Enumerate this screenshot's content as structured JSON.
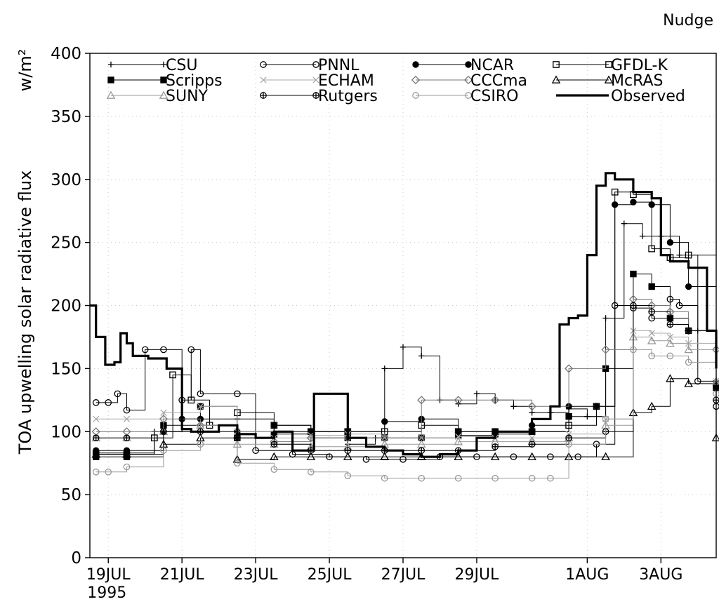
{
  "chart_data": {
    "type": "line",
    "title": "Nudge",
    "ylabel": "TOA upwelling solar radiative flux",
    "yunit": "w/m²",
    "ylim": [
      0,
      400
    ],
    "yticks": [
      0,
      50,
      100,
      150,
      200,
      250,
      300,
      350,
      400
    ],
    "xlim": [
      "1995-07-18T12:00",
      "1995-08-04T12:00"
    ],
    "xticks": [
      {
        "label": "19JUL",
        "sub": "1995",
        "date": "1995-07-19"
      },
      {
        "label": "21JUL",
        "sub": "",
        "date": "1995-07-21"
      },
      {
        "label": "23JUL",
        "sub": "",
        "date": "1995-07-23"
      },
      {
        "label": "25JUL",
        "sub": "",
        "date": "1995-07-25"
      },
      {
        "label": "27JUL",
        "sub": "",
        "date": "1995-07-27"
      },
      {
        "label": "29JUL",
        "sub": "",
        "date": "1995-07-29"
      },
      {
        "label": "1AUG",
        "sub": "",
        "date": "1995-08-01"
      },
      {
        "label": "3AUG",
        "sub": "",
        "date": "1995-08-03"
      }
    ],
    "grid": true,
    "legend_position": "top",
    "series": [
      {
        "name": "CSU",
        "color": "#000000",
        "marker": "plus",
        "width": 1,
        "x": [
          "1995-07-18T16:00",
          "1995-07-19T12:00",
          "1995-07-20T06:00",
          "1995-07-21T00:00",
          "1995-07-21T12:00",
          "1995-07-22T12:00",
          "1995-07-23T12:00",
          "1995-07-24T12:00",
          "1995-07-25T12:00",
          "1995-07-26T06:00",
          "1995-07-26T12:00",
          "1995-07-27T00:00",
          "1995-07-27T12:00",
          "1995-07-28T00:00",
          "1995-07-28T12:00",
          "1995-07-29T00:00",
          "1995-07-29T12:00",
          "1995-07-30T00:00",
          "1995-07-30T12:00",
          "1995-07-31T00:00",
          "1995-07-31T12:00",
          "1995-08-01T00:00",
          "1995-08-01T12:00",
          "1995-08-02T00:00",
          "1995-08-02T12:00",
          "1995-08-03T00:00",
          "1995-08-03T12:00",
          "1995-08-04T00:00",
          "1995-08-04T12:00"
        ],
        "y": [
          83,
          83,
          100,
          110,
          105,
          110,
          100,
          95,
          90,
          95,
          150,
          167,
          160,
          125,
          122,
          130,
          125,
          120,
          115,
          115,
          118,
          112,
          190,
          265,
          255,
          255,
          240,
          180,
          140
        ]
      },
      {
        "name": "PNNL",
        "color": "#000000",
        "marker": "circle",
        "width": 1,
        "x": [
          "1995-07-18T16:00",
          "1995-07-19T00:00",
          "1995-07-19T06:00",
          "1995-07-19T12:00",
          "1995-07-20T00:00",
          "1995-07-20T12:00",
          "1995-07-21T00:00",
          "1995-07-21T06:00",
          "1995-07-21T12:00",
          "1995-07-22T12:00",
          "1995-07-23T00:00",
          "1995-07-24T00:00",
          "1995-07-25T00:00",
          "1995-07-26T00:00",
          "1995-07-27T00:00",
          "1995-07-28T00:00",
          "1995-07-29T00:00",
          "1995-07-30T00:00",
          "1995-07-31T00:00",
          "1995-07-31T18:00",
          "1995-08-01T06:00",
          "1995-08-01T18:00",
          "1995-08-02T06:00",
          "1995-08-02T18:00",
          "1995-08-03T06:00",
          "1995-08-03T12:00",
          "1995-08-04T00:00",
          "1995-08-04T12:00"
        ],
        "y": [
          123,
          123,
          130,
          117,
          165,
          165,
          125,
          165,
          130,
          130,
          85,
          82,
          80,
          78,
          78,
          80,
          80,
          80,
          80,
          80,
          90,
          200,
          198,
          190,
          205,
          200,
          140,
          120
        ]
      },
      {
        "name": "NCAR",
        "color": "#000000",
        "marker": "dot",
        "width": 1,
        "x": [
          "1995-07-18T16:00",
          "1995-07-19T12:00",
          "1995-07-20T12:00",
          "1995-07-21T00:00",
          "1995-07-21T12:00",
          "1995-07-22T12:00",
          "1995-07-23T12:00",
          "1995-07-24T12:00",
          "1995-07-25T12:00",
          "1995-07-26T12:00",
          "1995-07-27T12:00",
          "1995-07-28T12:00",
          "1995-07-29T12:00",
          "1995-07-30T12:00",
          "1995-07-31T12:00",
          "1995-08-01T06:00",
          "1995-08-01T18:00",
          "1995-08-02T06:00",
          "1995-08-02T18:00",
          "1995-08-03T06:00",
          "1995-08-03T18:00",
          "1995-08-04T12:00"
        ],
        "y": [
          85,
          85,
          100,
          110,
          110,
          100,
          105,
          100,
          100,
          108,
          110,
          100,
          100,
          105,
          120,
          120,
          280,
          282,
          280,
          250,
          215,
          135
        ]
      },
      {
        "name": "GFDL-K",
        "color": "#000000",
        "marker": "square",
        "width": 1,
        "x": [
          "1995-07-18T16:00",
          "1995-07-19T12:00",
          "1995-07-20T06:00",
          "1995-07-20T18:00",
          "1995-07-21T06:00",
          "1995-07-21T18:00",
          "1995-07-22T12:00",
          "1995-07-23T12:00",
          "1995-07-24T12:00",
          "1995-07-25T12:00",
          "1995-07-26T12:00",
          "1995-07-27T12:00",
          "1995-07-28T12:00",
          "1995-07-29T12:00",
          "1995-07-30T12:00",
          "1995-07-31T12:00",
          "1995-08-01T06:00",
          "1995-08-01T18:00",
          "1995-08-02T06:00",
          "1995-08-02T18:00",
          "1995-08-03T06:00",
          "1995-08-03T18:00",
          "1995-08-04T12:00"
        ],
        "y": [
          82,
          82,
          95,
          145,
          125,
          105,
          115,
          105,
          100,
          100,
          100,
          105,
          100,
          100,
          100,
          105,
          120,
          290,
          288,
          245,
          238,
          240,
          135
        ]
      },
      {
        "name": "Scripps",
        "color": "#000000",
        "marker": "square-filled",
        "width": 1,
        "x": [
          "1995-07-18T16:00",
          "1995-07-19T12:00",
          "1995-07-20T12:00",
          "1995-07-21T12:00",
          "1995-07-22T12:00",
          "1995-07-23T12:00",
          "1995-07-24T12:00",
          "1995-07-25T12:00",
          "1995-07-26T12:00",
          "1995-07-27T12:00",
          "1995-07-28T12:00",
          "1995-07-29T12:00",
          "1995-07-30T12:00",
          "1995-07-31T12:00",
          "1995-08-01T12:00",
          "1995-08-02T06:00",
          "1995-08-02T18:00",
          "1995-08-03T06:00",
          "1995-08-03T18:00",
          "1995-08-04T12:00"
        ],
        "y": [
          80,
          80,
          105,
          120,
          95,
          98,
          100,
          95,
          95,
          95,
          97,
          98,
          100,
          112,
          150,
          225,
          215,
          190,
          180,
          138
        ]
      },
      {
        "name": "ECHAM",
        "color": "#aaaaaa",
        "marker": "x",
        "width": 1,
        "x": [
          "1995-07-18T16:00",
          "1995-07-19T12:00",
          "1995-07-20T12:00",
          "1995-07-21T12:00",
          "1995-07-22T12:00",
          "1995-07-23T12:00",
          "1995-07-24T12:00",
          "1995-07-25T12:00",
          "1995-07-26T12:00",
          "1995-07-27T12:00",
          "1995-07-28T12:00",
          "1995-07-29T12:00",
          "1995-07-30T12:00",
          "1995-07-31T12:00",
          "1995-08-01T12:00",
          "1995-08-02T06:00",
          "1995-08-02T18:00",
          "1995-08-03T06:00",
          "1995-08-03T18:00",
          "1995-08-04T12:00"
        ],
        "y": [
          110,
          110,
          115,
          120,
          100,
          95,
          97,
          98,
          95,
          95,
          96,
          95,
          95,
          98,
          110,
          180,
          178,
          175,
          170,
          140
        ]
      },
      {
        "name": "CCCma",
        "color": "#777777",
        "marker": "diamond",
        "width": 1,
        "x": [
          "1995-07-18T16:00",
          "1995-07-19T12:00",
          "1995-07-20T12:00",
          "1995-07-21T12:00",
          "1995-07-22T12:00",
          "1995-07-23T12:00",
          "1995-07-24T12:00",
          "1995-07-25T12:00",
          "1995-07-26T12:00",
          "1995-07-27T12:00",
          "1995-07-28T12:00",
          "1995-07-29T12:00",
          "1995-07-30T12:00",
          "1995-07-31T12:00",
          "1995-08-01T12:00",
          "1995-08-02T06:00",
          "1995-08-02T18:00",
          "1995-08-03T06:00",
          "1995-08-03T18:00",
          "1995-08-04T12:00"
        ],
        "y": [
          100,
          100,
          110,
          105,
          95,
          92,
          95,
          95,
          95,
          125,
          125,
          125,
          120,
          150,
          165,
          205,
          200,
          195,
          180,
          165
        ]
      },
      {
        "name": "McRAS",
        "color": "#000000",
        "marker": "triangle",
        "width": 1,
        "x": [
          "1995-07-18T16:00",
          "1995-07-19T12:00",
          "1995-07-20T12:00",
          "1995-07-21T12:00",
          "1995-07-22T12:00",
          "1995-07-23T12:00",
          "1995-07-24T12:00",
          "1995-07-25T12:00",
          "1995-07-26T12:00",
          "1995-07-27T12:00",
          "1995-07-28T12:00",
          "1995-07-29T12:00",
          "1995-07-30T12:00",
          "1995-07-31T12:00",
          "1995-08-01T12:00",
          "1995-08-02T06:00",
          "1995-08-02T18:00",
          "1995-08-03T06:00",
          "1995-08-03T18:00",
          "1995-08-04T12:00"
        ],
        "y": [
          82,
          82,
          90,
          95,
          78,
          80,
          80,
          80,
          80,
          80,
          80,
          80,
          80,
          80,
          80,
          115,
          120,
          142,
          138,
          95
        ]
      },
      {
        "name": "SUNY",
        "color": "#999999",
        "marker": "triangle",
        "width": 1,
        "x": [
          "1995-07-18T16:00",
          "1995-07-19T12:00",
          "1995-07-20T12:00",
          "1995-07-21T12:00",
          "1995-07-22T12:00",
          "1995-07-23T12:00",
          "1995-07-24T12:00",
          "1995-07-25T12:00",
          "1995-07-26T12:00",
          "1995-07-27T12:00",
          "1995-07-28T12:00",
          "1995-07-29T12:00",
          "1995-07-30T12:00",
          "1995-07-31T12:00",
          "1995-08-01T12:00",
          "1995-08-02T06:00",
          "1995-08-02T18:00",
          "1995-08-03T06:00",
          "1995-08-03T18:00",
          "1995-08-04T12:00"
        ],
        "y": [
          95,
          95,
          100,
          105,
          90,
          90,
          88,
          88,
          90,
          90,
          92,
          92,
          92,
          95,
          105,
          175,
          172,
          170,
          165,
          140
        ]
      },
      {
        "name": "Rutgers",
        "color": "#000000",
        "marker": "circle-cross",
        "width": 1,
        "x": [
          "1995-07-18T16:00",
          "1995-07-19T12:00",
          "1995-07-20T12:00",
          "1995-07-21T12:00",
          "1995-07-22T12:00",
          "1995-07-23T12:00",
          "1995-07-24T12:00",
          "1995-07-25T12:00",
          "1995-07-26T12:00",
          "1995-07-27T12:00",
          "1995-07-28T12:00",
          "1995-07-29T12:00",
          "1995-07-30T12:00",
          "1995-07-31T12:00",
          "1995-08-01T12:00",
          "1995-08-02T06:00",
          "1995-08-02T18:00",
          "1995-08-03T06:00",
          "1995-08-03T18:00",
          "1995-08-04T12:00"
        ],
        "y": [
          95,
          95,
          100,
          100,
          95,
          90,
          85,
          85,
          85,
          85,
          85,
          88,
          90,
          95,
          100,
          200,
          195,
          185,
          180,
          125
        ]
      },
      {
        "name": "CSIRO",
        "color": "#999999",
        "marker": "circle",
        "width": 1,
        "x": [
          "1995-07-18T16:00",
          "1995-07-19T00:00",
          "1995-07-19T12:00",
          "1995-07-20T12:00",
          "1995-07-21T12:00",
          "1995-07-22T12:00",
          "1995-07-23T12:00",
          "1995-07-24T12:00",
          "1995-07-25T12:00",
          "1995-07-26T12:00",
          "1995-07-27T12:00",
          "1995-07-28T12:00",
          "1995-07-29T12:00",
          "1995-07-30T12:00",
          "1995-07-31T00:00",
          "1995-07-31T12:00",
          "1995-08-01T12:00",
          "1995-08-02T06:00",
          "1995-08-02T18:00",
          "1995-08-03T06:00",
          "1995-08-03T18:00",
          "1995-08-04T12:00"
        ],
        "y": [
          68,
          68,
          72,
          85,
          90,
          75,
          70,
          68,
          65,
          63,
          63,
          63,
          63,
          63,
          63,
          90,
          110,
          165,
          160,
          160,
          155,
          130
        ]
      },
      {
        "name": "Observed",
        "color": "#000000",
        "marker": "none",
        "width": 3.2,
        "x": [
          "1995-07-18T12:00",
          "1995-07-18T16:00",
          "1995-07-18T22:00",
          "1995-07-19T04:00",
          "1995-07-19T08:00",
          "1995-07-19T12:00",
          "1995-07-19T16:00",
          "1995-07-20T02:00",
          "1995-07-20T08:00",
          "1995-07-20T14:00",
          "1995-07-21T00:00",
          "1995-07-21T06:00",
          "1995-07-21T12:00",
          "1995-07-22T00:00",
          "1995-07-22T12:00",
          "1995-07-23T00:00",
          "1995-07-23T12:00",
          "1995-07-24T00:00",
          "1995-07-24T10:00",
          "1995-07-24T14:00",
          "1995-07-25T06:00",
          "1995-07-25T12:00",
          "1995-07-26T00:00",
          "1995-07-26T12:00",
          "1995-07-27T00:00",
          "1995-07-27T12:00",
          "1995-07-28T00:00",
          "1995-07-28T12:00",
          "1995-07-29T00:00",
          "1995-07-29T12:00",
          "1995-07-30T00:00",
          "1995-07-30T12:00",
          "1995-07-31T00:00",
          "1995-07-31T06:00",
          "1995-07-31T12:00",
          "1995-07-31T18:00",
          "1995-08-01T00:00",
          "1995-08-01T06:00",
          "1995-08-01T12:00",
          "1995-08-01T18:00",
          "1995-08-02T06:00",
          "1995-08-02T12:00",
          "1995-08-02T18:00",
          "1995-08-03T00:00",
          "1995-08-03T06:00",
          "1995-08-03T18:00",
          "1995-08-04T06:00",
          "1995-08-04T12:00"
        ],
        "y": [
          200,
          175,
          153,
          155,
          178,
          170,
          160,
          158,
          158,
          150,
          102,
          100,
          100,
          105,
          98,
          95,
          100,
          85,
          85,
          130,
          130,
          95,
          88,
          85,
          82,
          80,
          82,
          85,
          95,
          100,
          100,
          110,
          120,
          185,
          190,
          192,
          240,
          295,
          305,
          300,
          290,
          290,
          285,
          240,
          235,
          230,
          180,
          150
        ]
      }
    ]
  }
}
